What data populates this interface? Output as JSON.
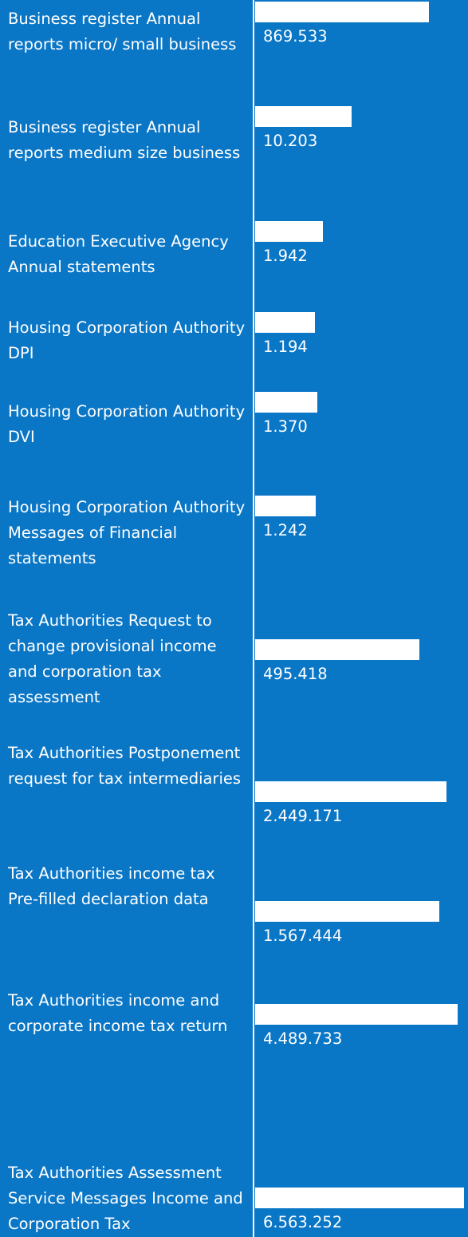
{
  "chart_data": {
    "type": "barh",
    "categories": [
      "Business register Annual reports micro/ small business",
      "Business register Annual reports medium size business",
      "Education Executive Agency Annual statements",
      "Housing Corporation Authority DPI",
      "Housing Corporation Authority DVI",
      "Housing Corporation Authority Messages of Financial statements",
      "Tax Authorities Request to change provisional income and corporation tax assessment",
      "Tax Authorities Postponement request for tax intermediaries",
      "Tax Authorities income tax Pre-filled declaration data",
      "Tax Authorities income and corporate income tax return",
      "Tax Authorities Assessment Service Messages Income and Corporation Tax"
    ],
    "values": [
      869533,
      10203,
      1942,
      1194,
      1370,
      1242,
      495418,
      2449171,
      1567444,
      4489733,
      6563252
    ],
    "value_labels": [
      "869.533",
      "10.203",
      "1.942",
      "1.194",
      "1.370",
      "1.242",
      "495.418",
      "2.449.171",
      "1.567.444",
      "4.489.733",
      "6.563.252"
    ],
    "color": "#ffffff",
    "background": "#0a76c6",
    "xlim": [
      38,
      8300000
    ],
    "log_scale": true
  }
}
